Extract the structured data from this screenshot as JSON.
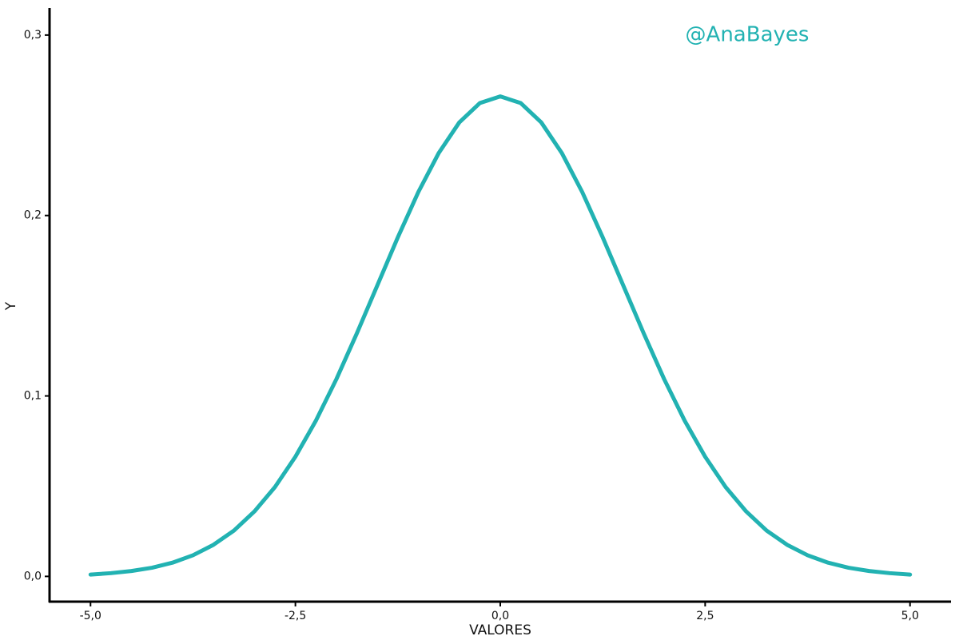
{
  "chart_data": {
    "type": "line",
    "annotation": "@AnaBayes",
    "x_label": "VALORES",
    "y_label": "Y",
    "x": [
      -5,
      -4.75,
      -4.5,
      -4.25,
      -4,
      -3.75,
      -3.5,
      -3.25,
      -3,
      -2.75,
      -2.5,
      -2.25,
      -2,
      -1.75,
      -1.5,
      -1.25,
      -1,
      -0.75,
      -0.5,
      -0.25,
      0,
      0.25,
      0.5,
      0.75,
      1,
      1.25,
      1.5,
      1.75,
      2,
      2.25,
      2.5,
      2.75,
      3,
      3.25,
      3.5,
      3.75,
      4,
      4.25,
      4.5,
      4.75,
      5
    ],
    "series": [
      {
        "color": "#22b2b2",
        "values": [
          0.001,
          0.0018,
          0.003,
          0.0048,
          0.0076,
          0.0117,
          0.0175,
          0.0254,
          0.036,
          0.0495,
          0.0663,
          0.0863,
          0.1093,
          0.1347,
          0.1613,
          0.1879,
          0.213,
          0.2347,
          0.2516,
          0.2623,
          0.266,
          0.2623,
          0.2516,
          0.2347,
          0.213,
          0.1879,
          0.1613,
          0.1347,
          0.1093,
          0.0863,
          0.0663,
          0.0495,
          0.036,
          0.0254,
          0.0175,
          0.0117,
          0.0076,
          0.0048,
          0.003,
          0.0018,
          0.001
        ]
      }
    ],
    "xlim": [
      -5.5,
      5.5
    ],
    "ylim": [
      -0.014,
      0.315
    ],
    "xticks": [
      {
        "value": -5,
        "label": "-5,0"
      },
      {
        "value": -2.5,
        "label": "-2,5"
      },
      {
        "value": 0,
        "label": "0,0"
      },
      {
        "value": 2.5,
        "label": "2,5"
      },
      {
        "value": 5,
        "label": "5,0"
      }
    ],
    "yticks": [
      {
        "value": 0,
        "label": "0,0"
      },
      {
        "value": 0.1,
        "label": "0,1"
      },
      {
        "value": 0.2,
        "label": "0,2"
      },
      {
        "value": 0.3,
        "label": "0,3"
      }
    ],
    "grid": false
  }
}
